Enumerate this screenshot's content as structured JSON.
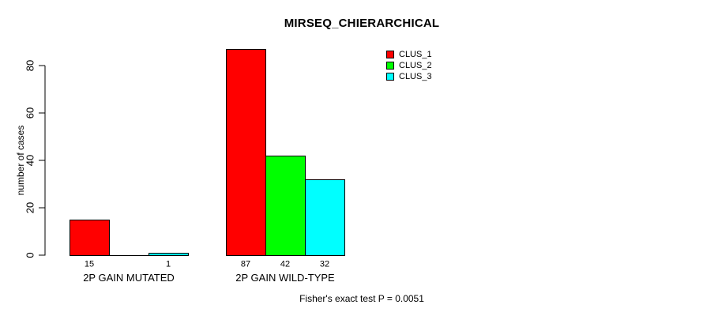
{
  "chart_data": {
    "type": "bar",
    "title": "MIRSEQ_CHIERARCHICAL",
    "ylabel": "number of cases",
    "xlabel": "",
    "ylim": [
      0,
      88
    ],
    "yticks": [
      0,
      20,
      40,
      60,
      80
    ],
    "grid": false,
    "legend_position": "top-right",
    "categories": [
      "2P GAIN MUTATED",
      "2P GAIN WILD-TYPE"
    ],
    "series": [
      {
        "name": "CLUS_1",
        "color": "#FF0000",
        "values": [
          15,
          87
        ]
      },
      {
        "name": "CLUS_2",
        "color": "#00FF00",
        "values": [
          0,
          42
        ]
      },
      {
        "name": "CLUS_3",
        "color": "#00FFFF",
        "values": [
          1,
          32
        ]
      }
    ],
    "show_value_labels": true,
    "value_labels": [
      [
        "15",
        "",
        "1"
      ],
      [
        "87",
        "42",
        "32"
      ]
    ],
    "annotation": "Fisher's exact test P = 0.0051"
  },
  "colors": {
    "axis": "#000000",
    "background": "#FFFFFF",
    "bar_border": "#000000"
  }
}
